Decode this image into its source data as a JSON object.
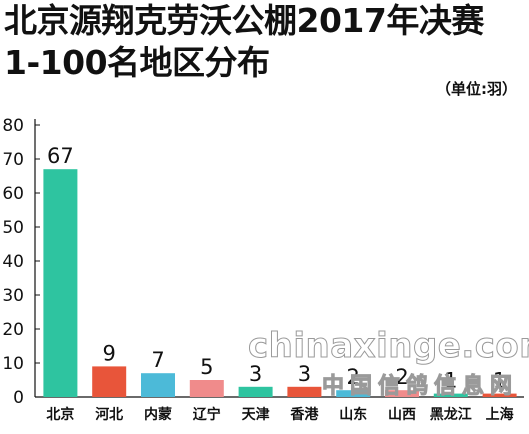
{
  "title_line1": "北京源翔克劳沃公棚2017年决赛",
  "title_line2": "1-100名地区分布",
  "unit": "（单位:羽）",
  "watermark": "chinaxinge.com",
  "watermark2": "中国信鸽信息网",
  "chart_data": {
    "type": "bar",
    "categories": [
      "北京",
      "河北",
      "内蒙",
      "辽宁",
      "天津",
      "香港",
      "山东",
      "山西",
      "黑龙江",
      "上海"
    ],
    "values": [
      67,
      9,
      7,
      5,
      3,
      3,
      2,
      2,
      1,
      1
    ],
    "colors": [
      "#2ec4a0",
      "#e8553a",
      "#4cbad8",
      "#f08b8b",
      "#2ec4a0",
      "#e8553a",
      "#4cbad8",
      "#f08b8b",
      "#2ec4a0",
      "#e8553a"
    ],
    "ylim": [
      0,
      80
    ],
    "yticks": [
      0,
      10,
      20,
      30,
      40,
      50,
      60,
      70,
      80
    ],
    "grid": false,
    "data_labels": true
  }
}
